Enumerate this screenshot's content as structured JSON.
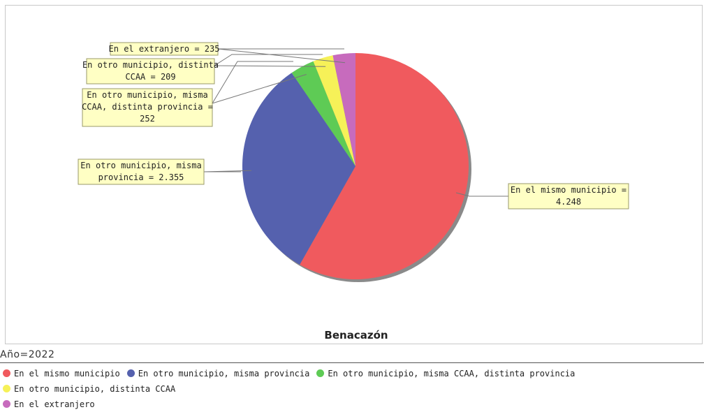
{
  "chart_data": {
    "type": "pie",
    "title": "Benacazón",
    "subtitle": "Año=2022",
    "slices": [
      {
        "name": "En el mismo municipio",
        "value": 4248,
        "value_label": "4.248",
        "color": "#f05a5e"
      },
      {
        "name": "En otro municipio, misma provincia",
        "value": 2355,
        "value_label": "2.355",
        "color": "#5561ae"
      },
      {
        "name": "En otro municipio, misma CCAA, distinta provincia",
        "value": 252,
        "value_label": "252",
        "color": "#5ecb55"
      },
      {
        "name": "En otro municipio, distinta CCAA",
        "value": 209,
        "value_label": "209",
        "color": "#f6f158"
      },
      {
        "name": "En el extranjero",
        "value": 235,
        "value_label": "235",
        "color": "#c76bbd"
      }
    ],
    "labels": [
      {
        "lines": [
          "En el mismo municipio =",
          "4.248"
        ]
      },
      {
        "lines": [
          "En otro municipio, misma",
          "provincia = 2.355"
        ]
      },
      {
        "lines": [
          "En otro municipio, misma",
          "CCAA, distinta provincia =",
          "252"
        ]
      },
      {
        "lines": [
          "En otro municipio, distinta",
          "CCAA = 209"
        ]
      },
      {
        "lines": [
          "En el extranjero = 235"
        ]
      }
    ],
    "legend_position": "bottom"
  }
}
